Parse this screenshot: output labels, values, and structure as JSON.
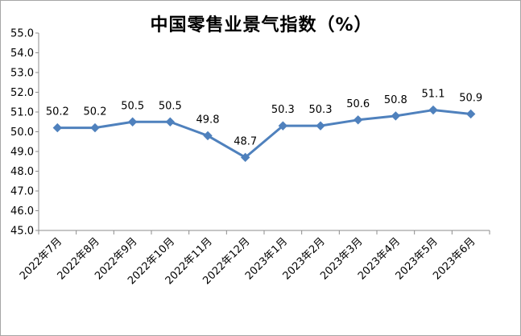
{
  "chart_data": {
    "type": "line",
    "title": "中国零售业景气指数（%）",
    "categories": [
      "2022年7月",
      "2022年8月",
      "2022年9月",
      "2022年10月",
      "2022年11月",
      "2022年12月",
      "2023年1月",
      "2023年2月",
      "2023年3月",
      "2023年4月",
      "2023年5月",
      "2023年6月"
    ],
    "values": [
      50.2,
      50.2,
      50.5,
      50.5,
      49.8,
      48.7,
      50.3,
      50.3,
      50.6,
      50.8,
      51.1,
      50.9
    ],
    "data_labels": [
      "50.2",
      "50.2",
      "50.5",
      "50.5",
      "49.8",
      "48.7",
      "50.3",
      "50.3",
      "50.6",
      "50.8",
      "51.1",
      "50.9"
    ],
    "ylim": [
      45.0,
      55.0
    ],
    "yticks": [
      "45.0",
      "46.0",
      "47.0",
      "48.0",
      "49.0",
      "50.0",
      "51.0",
      "52.0",
      "53.0",
      "54.0",
      "55.0"
    ],
    "grid": false,
    "legend": "none",
    "line_color": "#4f81bd"
  }
}
